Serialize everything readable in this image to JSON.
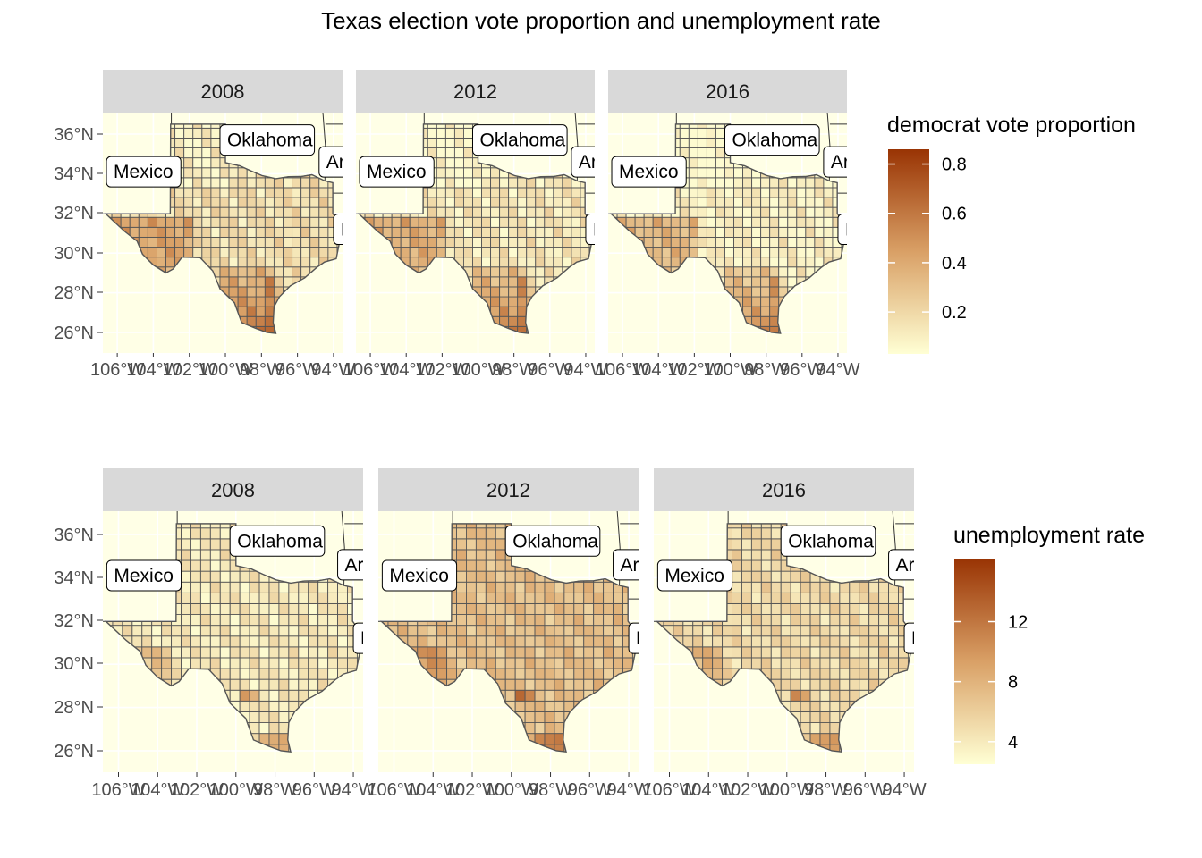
{
  "figure": {
    "title": "Texas election vote proportion and unemployment rate"
  },
  "colors": {
    "panel_background": "#ffffe6",
    "strip_background": "#d9d9d9",
    "gridline": "#ffffff",
    "county_border": "#555555",
    "state_border": "#333333",
    "scale_low": "#ffffd4",
    "scale_mid": "#d9a066",
    "scale_high": "#993404"
  },
  "axes": {
    "lat_ticks": [
      "36°N",
      "34°N",
      "32°N",
      "30°N",
      "28°N",
      "26°N"
    ],
    "lon_ticks": [
      "106°W",
      "104°W",
      "102°W",
      "100°W",
      "98°W",
      "96°W",
      "94°W"
    ],
    "lat_range": [
      25,
      37
    ],
    "lon_range": [
      -106.8,
      -93.5
    ]
  },
  "labels": {
    "mexico": "Mexico",
    "oklahoma": "Oklahoma",
    "arkansas": "Arka",
    "louisiana": "Lou"
  },
  "rows": [
    {
      "legend": {
        "title": "democrat vote proportion",
        "ticks": [
          "0.8",
          "0.6",
          "0.4",
          "0.2"
        ],
        "range": [
          0.03,
          0.86
        ]
      },
      "panels": [
        {
          "strip": "2008"
        },
        {
          "strip": "2012"
        },
        {
          "strip": "2016"
        }
      ]
    },
    {
      "legend": {
        "title": "unemployment rate",
        "ticks": [
          "12",
          "8",
          "4"
        ],
        "range": [
          2.5,
          16.2
        ]
      },
      "panels": [
        {
          "strip": "2008"
        },
        {
          "strip": "2012"
        },
        {
          "strip": "2016"
        }
      ]
    }
  ]
}
